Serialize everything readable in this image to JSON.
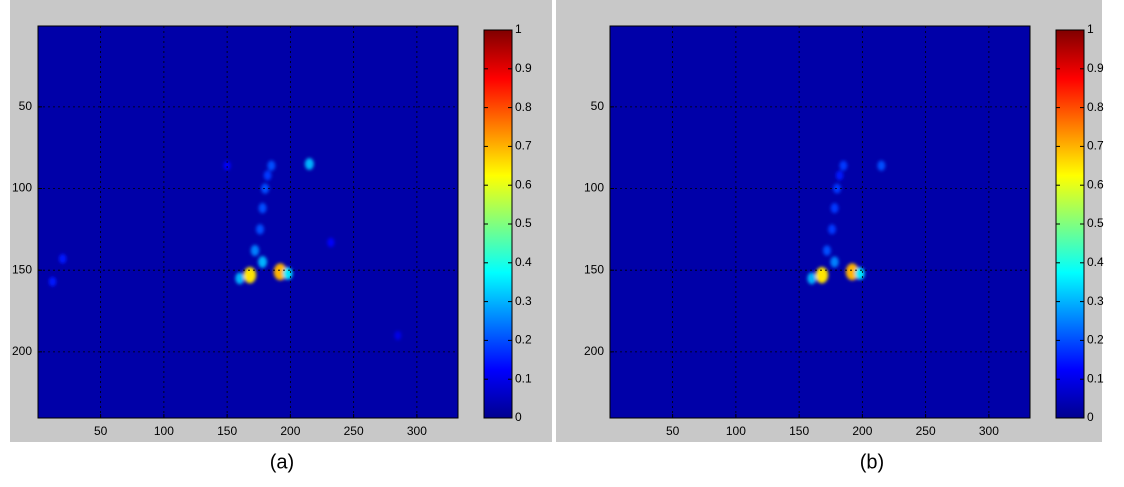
{
  "chart_data": [
    {
      "type": "heatmap",
      "caption": "(a)",
      "x": [
        168,
        192,
        172,
        176,
        178,
        180,
        182,
        185,
        178,
        215,
        150,
        20,
        232,
        12,
        285,
        160,
        198
      ],
      "y": [
        153,
        151,
        138,
        125,
        112,
        100,
        92,
        86,
        145,
        85,
        86,
        143,
        133,
        157,
        190,
        155,
        152
      ],
      "values": [
        0.65,
        0.7,
        0.25,
        0.2,
        0.2,
        0.2,
        0.18,
        0.2,
        0.3,
        0.3,
        0.12,
        0.15,
        0.12,
        0.15,
        0.1,
        0.3,
        0.35
      ],
      "xlim": [
        0.5,
        332.5
      ],
      "ylim": [
        0.5,
        240.5
      ],
      "xticks": [
        50,
        100,
        150,
        200,
        250,
        300
      ],
      "yticks": [
        50,
        100,
        150,
        200
      ],
      "clim": [
        0,
        1
      ],
      "cticks": [
        0,
        0.1,
        0.2,
        0.3,
        0.4,
        0.5,
        0.6,
        0.7,
        0.8,
        0.9,
        1
      ],
      "grid": true
    },
    {
      "type": "heatmap",
      "caption": "(b)",
      "x": [
        168,
        192,
        172,
        176,
        178,
        180,
        182,
        185,
        178,
        215,
        160,
        198
      ],
      "y": [
        153,
        151,
        138,
        125,
        112,
        100,
        92,
        86,
        145,
        86,
        155,
        152
      ],
      "values": [
        0.65,
        0.7,
        0.2,
        0.18,
        0.18,
        0.18,
        0.15,
        0.18,
        0.25,
        0.2,
        0.3,
        0.35
      ],
      "xlim": [
        0.5,
        332.5
      ],
      "ylim": [
        0.5,
        240.5
      ],
      "xticks": [
        50,
        100,
        150,
        200,
        250,
        300
      ],
      "yticks": [
        50,
        100,
        150,
        200
      ],
      "clim": [
        0,
        1
      ],
      "cticks": [
        0,
        0.1,
        0.2,
        0.3,
        0.4,
        0.5,
        0.6,
        0.7,
        0.8,
        0.9,
        1
      ],
      "grid": true
    }
  ]
}
